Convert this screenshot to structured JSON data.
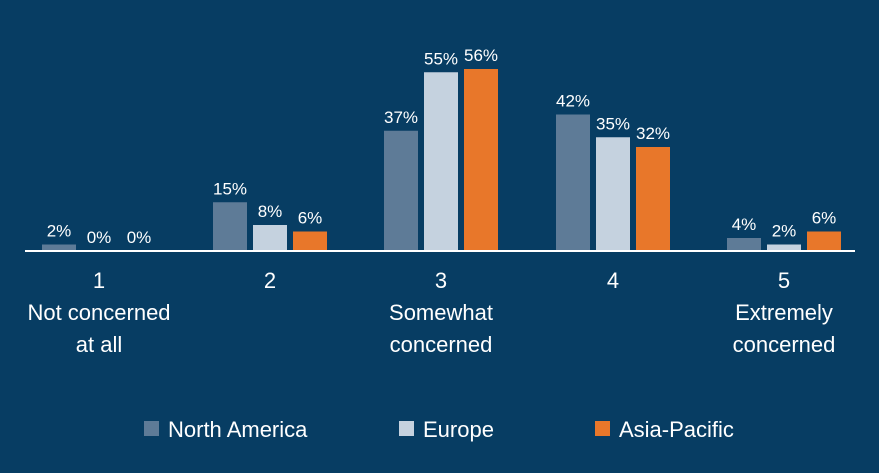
{
  "chart_data": {
    "type": "bar",
    "categories": [
      [
        "1",
        "Not concerned",
        "at all"
      ],
      [
        "2"
      ],
      [
        "3",
        "Somewhat",
        "concerned"
      ],
      [
        "4"
      ],
      [
        "5",
        "Extremely",
        "concerned"
      ]
    ],
    "series": [
      {
        "name": "North America",
        "color": "#5e7b97",
        "values": [
          2,
          15,
          37,
          42,
          4
        ],
        "labels": [
          "2%",
          "15%",
          "37%",
          "42%",
          "4%"
        ]
      },
      {
        "name": "Europe",
        "color": "#c5d2df",
        "values": [
          0,
          8,
          55,
          35,
          2
        ],
        "labels": [
          "0%",
          "8%",
          "55%",
          "35%",
          "2%"
        ]
      },
      {
        "name": "Asia-Pacific",
        "color": "#e8772a",
        "values": [
          0,
          6,
          56,
          32,
          6
        ],
        "labels": [
          "0%",
          "6%",
          "56%",
          "32%",
          "6%"
        ]
      }
    ],
    "ylim": [
      0,
      56
    ],
    "legend_position": "bottom",
    "grid": false
  },
  "colors": {
    "background": "#073d63",
    "axis": "#ffffff",
    "text": "#ffffff"
  }
}
